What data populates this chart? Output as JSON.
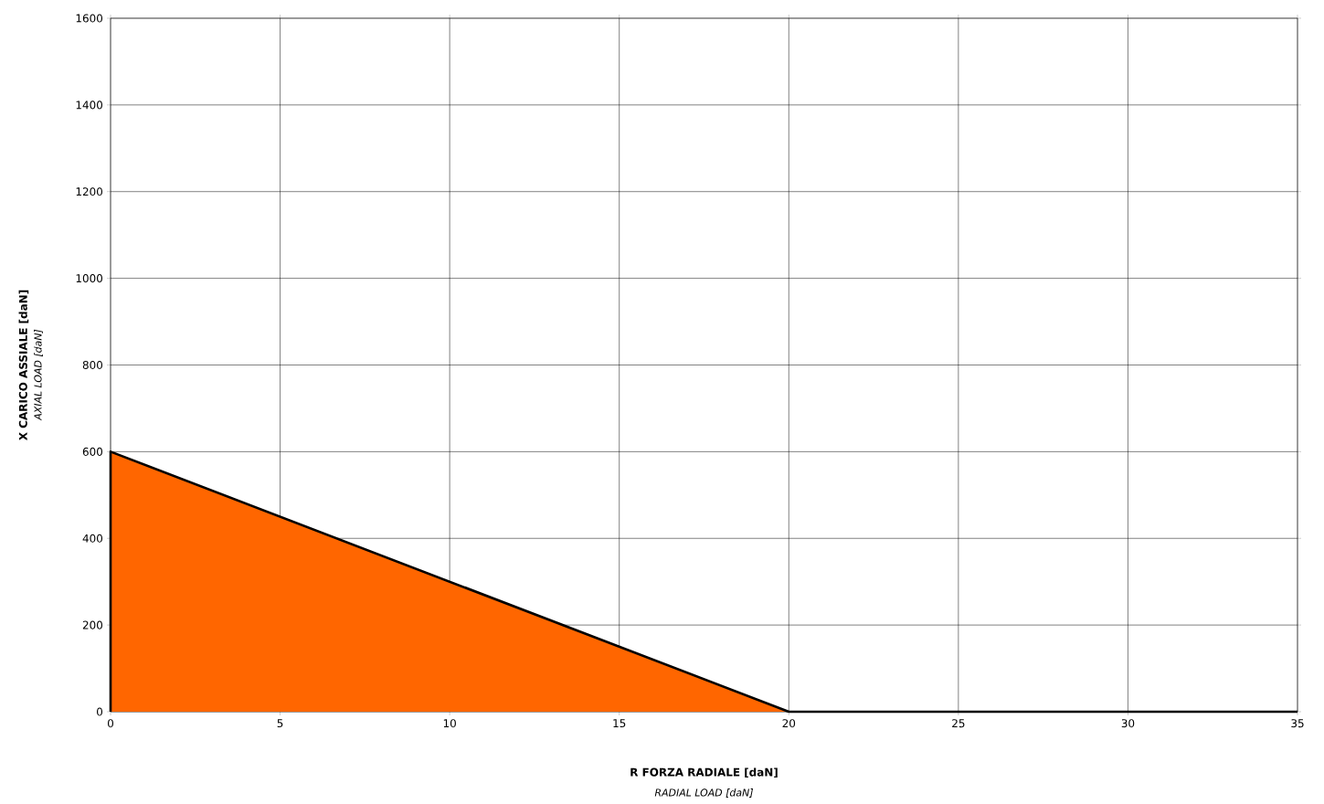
{
  "chart_data": {
    "type": "area",
    "xlabel": "R FORZA RADIALE [daN]",
    "ylabel": "X CARICO ASSIALE [daN]",
    "annotations": [
      "RADIAL LOAD [daN]",
      "AXIAL LOAD [daN]"
    ],
    "x": [
      0,
      20,
      35
    ],
    "series": [
      {
        "color": "#ff6600",
        "values": [
          600,
          0,
          0
        ]
      }
    ],
    "xlim": [
      0,
      35
    ],
    "ylim": [
      0,
      1600
    ],
    "xticks": [
      0,
      5,
      10,
      15,
      20,
      25,
      30,
      35
    ],
    "yticks": [
      0,
      200,
      400,
      600,
      800,
      1000,
      1200,
      1400,
      1600
    ],
    "grid": true
  }
}
